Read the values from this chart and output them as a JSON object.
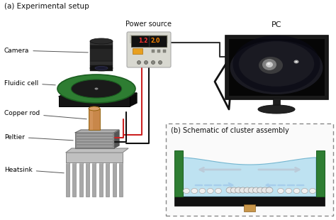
{
  "bg_color": "#ffffff",
  "title_a": "(a) Experimental setup",
  "title_b": "(b) Schematic of cluster assembly",
  "labels": {
    "camera": "Camera",
    "fluidic_cell": "Fluidic cell",
    "copper_rod": "Copper rod",
    "peltier": "Peltier",
    "heatsink": "Heatsink",
    "power_source": "Power source",
    "pc": "PC"
  },
  "colors": {
    "bg": "#ffffff",
    "camera_body": "#252525",
    "camera_ring": "#1a1a1a",
    "fluidic_ring": "#2e7d32",
    "fluidic_base": "#151515",
    "copper": "#c8874a",
    "copper_light": "#dba06a",
    "peltier_body": "#8a8a8a",
    "peltier_light": "#b0b0b0",
    "peltier_dark": "#555555",
    "heatsink_top": "#c0c0c0",
    "heatsink_body": "#a8a8a8",
    "heatsink_fin": "#909090",
    "heatsink_shadow": "#787878",
    "power_box": "#d5d5d5",
    "power_box_dark": "#bbbbbb",
    "power_display": "#111111",
    "monitor_frame": "#1a1a1a",
    "monitor_screen": "#080808",
    "monitor_stand": "#222222",
    "green_wall": "#2e7d32",
    "fluid_fill": "#b8e0f0",
    "fluid_fill2": "#d0edf8",
    "black_base": "#111111",
    "copper_rod_b": "#c8964a",
    "arrow_red": "#dd1111",
    "arrow_blue": "#1133cc",
    "dashed_border": "#888888",
    "particle": "#e8e8e8",
    "particle_border": "#999999",
    "wire_black": "#111111",
    "wire_red": "#cc2222",
    "wire_dark": "#333333"
  }
}
